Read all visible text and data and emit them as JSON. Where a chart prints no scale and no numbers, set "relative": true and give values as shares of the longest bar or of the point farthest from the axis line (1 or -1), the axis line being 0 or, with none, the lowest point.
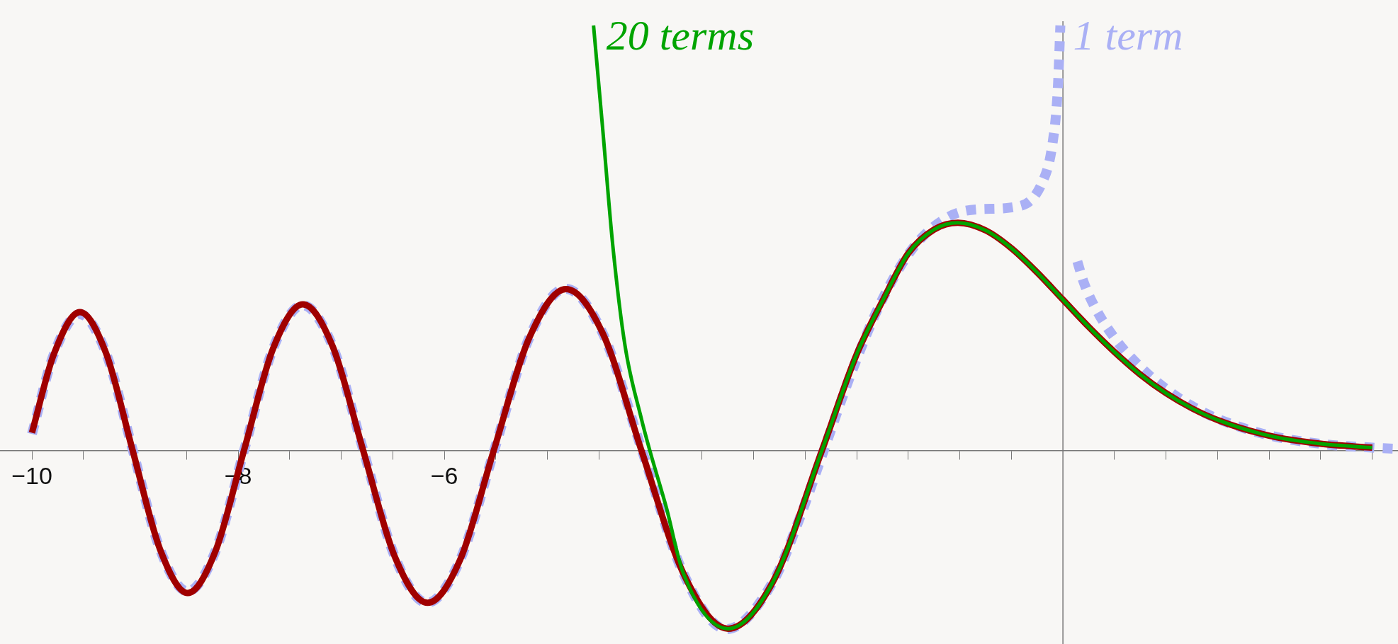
{
  "chart_data": {
    "type": "line",
    "relative": true,
    "legend": false,
    "xlim": [
      -10.31,
      3.25
    ],
    "xticks": [
      {
        "value": -10,
        "label": "−10"
      },
      {
        "value": -9.5,
        "label": null
      },
      {
        "value": -9,
        "label": null
      },
      {
        "value": -8.5,
        "label": null
      },
      {
        "value": -8,
        "label": "−8"
      },
      {
        "value": -7.5,
        "label": null
      },
      {
        "value": -7,
        "label": null
      },
      {
        "value": -6.5,
        "label": null
      },
      {
        "value": -6,
        "label": "−6"
      },
      {
        "value": -5.5,
        "label": null
      },
      {
        "value": -5,
        "label": null
      },
      {
        "value": -4.5,
        "label": null
      },
      {
        "value": -4,
        "label": null
      },
      {
        "value": -3.5,
        "label": null
      },
      {
        "value": -3,
        "label": null
      },
      {
        "value": -2.5,
        "label": null
      },
      {
        "value": -2,
        "label": null
      },
      {
        "value": -1.5,
        "label": null
      },
      {
        "value": -1,
        "label": null
      },
      {
        "value": -0.5,
        "label": null
      },
      {
        "value": 0.5,
        "label": null
      },
      {
        "value": 1,
        "label": null
      },
      {
        "value": 1.5,
        "label": null
      },
      {
        "value": 2,
        "label": null
      },
      {
        "value": 2.5,
        "label": null
      },
      {
        "value": 3,
        "label": null
      }
    ],
    "series": [
      {
        "name": "1 term",
        "color": "#aab0f5",
        "line_style": "dashed",
        "x": [
          -10,
          -9.789,
          -9.537,
          -9.281,
          -9.021,
          -8.758,
          -8.49,
          -8.219,
          -7.943,
          -7.661,
          -7.375,
          -7.083,
          -6.785,
          -6.48,
          -6.168,
          -5.847,
          -5.517,
          -5.177,
          -4.826,
          -4.462,
          -4.082,
          -3.683,
          -3.262,
          -2.811,
          -2.55,
          -2.32,
          -2.05,
          -1.771,
          -1.45,
          -1.116,
          -0.8,
          -0.5,
          -0.2,
          -0.1,
          -0.05,
          -0.025,
          0.06,
          0.14,
          0.2,
          0.3,
          0.5,
          0.75,
          1,
          1.25,
          1.5,
          2,
          2.5,
          3,
          3.25
        ],
        "values": [
          0.039,
          0.226,
          0.321,
          0.229,
          0,
          -0.232,
          -0.331,
          -0.236,
          0,
          0.24,
          0.342,
          0.245,
          0,
          -0.25,
          -0.358,
          -0.257,
          0,
          0.265,
          0.381,
          0.275,
          0,
          -0.288,
          -0.42,
          -0.308,
          -0.157,
          0,
          0.184,
          0.346,
          0.478,
          0.549,
          0.568,
          0.572,
          0.631,
          0.724,
          0.85,
          1,
          null,
          0.445,
          0.397,
          0.342,
          0.265,
          0.197,
          0.145,
          0.105,
          0.075,
          0.036,
          0.016,
          0.007,
          0.004
        ]
      },
      {
        "color": "#a00000",
        "line_style": "solid",
        "x": [
          -10,
          -9.789,
          -9.535,
          -9.281,
          -9.023,
          -8.758,
          -8.489,
          -8.219,
          -7.944,
          -7.661,
          -7.372,
          -7.083,
          -6.787,
          -6.48,
          -6.163,
          -5.847,
          -5.521,
          -5.177,
          -4.82,
          -4.462,
          -4.088,
          -3.683,
          -3.248,
          -2.811,
          -2.338,
          -2,
          -1.75,
          -1.5,
          -1.25,
          -1.019,
          -0.75,
          -0.5,
          -0.25,
          0,
          0.25,
          0.5,
          0.75,
          1,
          1.25,
          1.5,
          2,
          2.5,
          3
        ],
        "values": [
          0.042,
          0.226,
          0.326,
          0.229,
          0,
          -0.232,
          -0.335,
          -0.236,
          0,
          0.24,
          0.344,
          0.245,
          0,
          -0.25,
          -0.358,
          -0.257,
          0,
          0.265,
          0.38,
          0.275,
          0,
          -0.288,
          -0.419,
          -0.308,
          0,
          0.227,
          0.352,
          0.464,
          0.52,
          0.536,
          0.518,
          0.476,
          0.419,
          0.355,
          0.291,
          0.232,
          0.179,
          0.135,
          0.0996,
          0.072,
          0.035,
          0.016,
          0.007
        ]
      },
      {
        "name": "20 terms",
        "color": "#00a400",
        "line_style": "solid",
        "x": [
          -4.553,
          -4.467,
          -4.366,
          -4.247,
          -4.089,
          -4.007,
          -3.849,
          -3.683,
          -3.248,
          -2.811,
          -2.338,
          -2,
          -1.75,
          -1.5,
          -1.25,
          -1.019,
          -0.75,
          -0.5,
          -0.25,
          0,
          0.25,
          0.5,
          0.75,
          1,
          1.25,
          1.5,
          2,
          2.5,
          3
        ],
        "values": [
          1,
          0.765,
          0.482,
          0.246,
          0.075,
          0,
          -0.132,
          -0.288,
          -0.419,
          -0.308,
          0,
          0.227,
          0.352,
          0.464,
          0.52,
          0.536,
          0.518,
          0.476,
          0.419,
          0.355,
          0.291,
          0.232,
          0.179,
          0.135,
          0.0996,
          0.072,
          0.035,
          0.016,
          0.007
        ]
      }
    ]
  }
}
